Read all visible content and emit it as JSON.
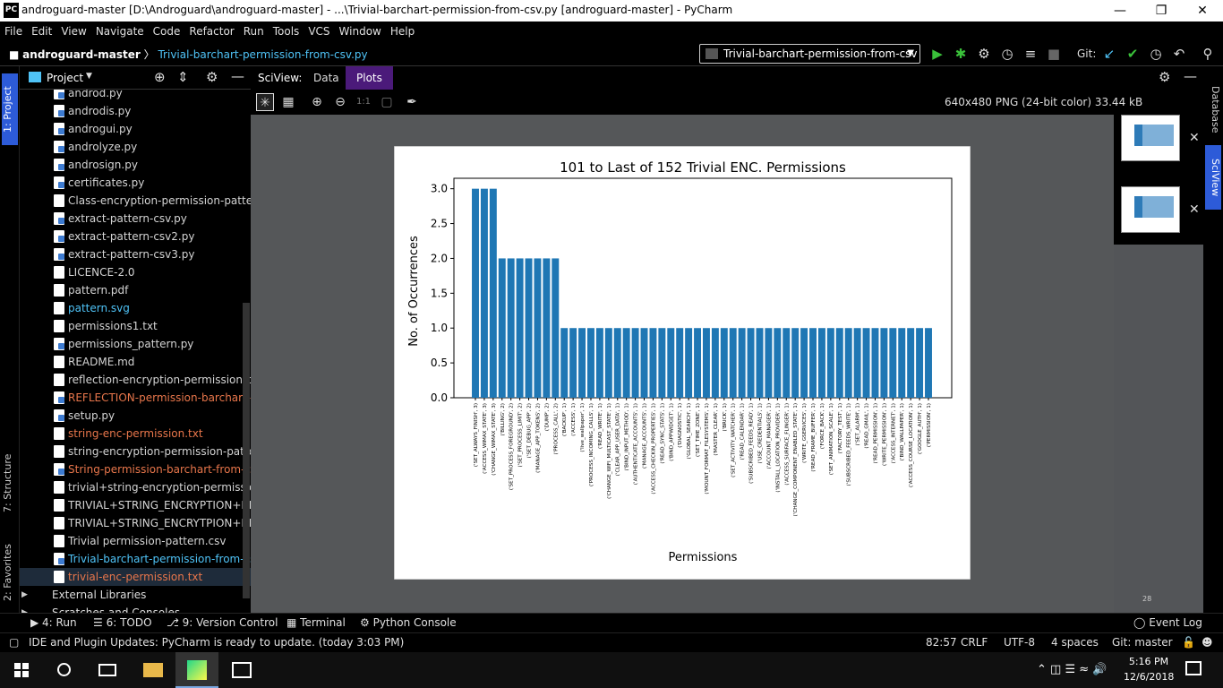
{
  "window": {
    "title": "androguard-master [D:\\Androguard\\androguard-master] - ...\\Trivial-barchart-permission-from-csv.py [androguard-master] - PyCharm",
    "logo": "PC"
  },
  "menu": [
    "File",
    "Edit",
    "View",
    "Navigate",
    "Code",
    "Refactor",
    "Run",
    "Tools",
    "VCS",
    "Window",
    "Help"
  ],
  "nav": {
    "project": "androguard-master",
    "file": "Trivial-barchart-permission-from-csv.py",
    "run_config": "Trivial-barchart-permission-from-csv",
    "git_label": "Git:"
  },
  "left_tabs": {
    "project": "1: Project",
    "structure": "7: Structure",
    "favorites": "2: Favorites"
  },
  "project_panel": {
    "title": "Project",
    "files": [
      {
        "name": "androd.py",
        "type": "py",
        "color": "#d4d4d4"
      },
      {
        "name": "androdis.py",
        "type": "py",
        "color": "#d4d4d4"
      },
      {
        "name": "androgui.py",
        "type": "py",
        "color": "#d4d4d4"
      },
      {
        "name": "androlyze.py",
        "type": "py",
        "color": "#d4d4d4"
      },
      {
        "name": "androsign.py",
        "type": "py",
        "color": "#d4d4d4"
      },
      {
        "name": "certificates.py",
        "type": "py",
        "color": "#d4d4d4"
      },
      {
        "name": "Class-encryption-permission-pattern.c",
        "type": "file",
        "color": "#d4d4d4"
      },
      {
        "name": "extract-pattern-csv.py",
        "type": "py",
        "color": "#d4d4d4"
      },
      {
        "name": "extract-pattern-csv2.py",
        "type": "py",
        "color": "#d4d4d4"
      },
      {
        "name": "extract-pattern-csv3.py",
        "type": "py",
        "color": "#d4d4d4"
      },
      {
        "name": "LICENCE-2.0",
        "type": "file",
        "color": "#d4d4d4"
      },
      {
        "name": "pattern.pdf",
        "type": "file",
        "color": "#d4d4d4"
      },
      {
        "name": "pattern.svg",
        "type": "file",
        "color": "#4fc3f7"
      },
      {
        "name": "permissions1.txt",
        "type": "file",
        "color": "#d4d4d4"
      },
      {
        "name": "permissions_pattern.py",
        "type": "py",
        "color": "#d4d4d4"
      },
      {
        "name": "README.md",
        "type": "file",
        "color": "#d4d4d4"
      },
      {
        "name": "reflection-encryption-permission-patte",
        "type": "file",
        "color": "#d4d4d4"
      },
      {
        "name": "REFLECTION-permission-barchart-fron",
        "type": "py",
        "color": "#e8764b"
      },
      {
        "name": "setup.py",
        "type": "py",
        "color": "#d4d4d4"
      },
      {
        "name": "string-enc-permission.txt",
        "type": "file",
        "color": "#e8764b"
      },
      {
        "name": "string-encryption-permission-pattern.c",
        "type": "file",
        "color": "#d4d4d4"
      },
      {
        "name": "String-permission-barchart-from-csv.p",
        "type": "py",
        "color": "#e8764b"
      },
      {
        "name": "trivial+string-encryption-permission-p",
        "type": "file",
        "color": "#d4d4d4"
      },
      {
        "name": "TRIVIAL+STRING_ENCRYPTION+REFLE",
        "type": "file",
        "color": "#d4d4d4"
      },
      {
        "name": "TRIVIAL+STRING_ENCRYTPION+REFLE",
        "type": "file",
        "color": "#d4d4d4"
      },
      {
        "name": "Trivial permission-pattern.csv",
        "type": "file",
        "color": "#d4d4d4"
      },
      {
        "name": "Trivial-barchart-permission-from-csv.p",
        "type": "py",
        "color": "#4fc3f7"
      },
      {
        "name": "trivial-enc-permission.txt",
        "type": "file",
        "color": "#e8764b"
      }
    ],
    "external": "External Libraries",
    "scratches": "Scratches and Consoles"
  },
  "sciview": {
    "label": "SciView:",
    "tab_data": "Data",
    "tab_plots": "Plots",
    "zoom_label": "1:1",
    "image_info": "640x480 PNG (24-bit color) 33.44 kB",
    "thumb_count": "28"
  },
  "right_tabs": {
    "database": "Database",
    "sciview": "SciView"
  },
  "chart_data": {
    "type": "bar",
    "title": "101 to Last of 152 Trivial ENC. Permissions",
    "xlabel": "Permissions",
    "ylabel": "No. of Occurrences",
    "ylim": [
      0,
      3.15
    ],
    "yticks": [
      "0.0",
      "0.5",
      "1.0",
      "1.5",
      "2.0",
      "2.5",
      "3.0"
    ],
    "bar_color": "#1f77b4",
    "categories": [
      "('SET_ALWAYS_FINISH', 3)",
      "('ACCESS_WIMAX_STATE', 3)",
      "('CHANGE_WIMAX_STATE', 3)",
      "('BILLING', 2)",
      "('SET_PROCESS_FOREGROUND', 2)",
      "('SET_PROCESS_LIMIT', 2)",
      "('SET_DEBUG_APP', 2)",
      "('MANAGE_APP_TOKENS', 2)",
      "('DUMP', 2)",
      "('PROCESS_CALL', 2)",
      "('BACKUP', 1)",
      "('ACCESS', 1)",
      "('live_wallpaper', 1)",
      "('PROCESS_INCOMING_CALLS', 1)",
      "('READ_WRITE', 1)",
      "('CHANGE_WIFI_MULTICAST_STATE', 1)",
      "('CLEAR_APP_USER_DATA', 1)",
      "('BIND_INPUT_METHOD', 1)",
      "('AUTHENTICATE_ACCOUNTS', 1)",
      "('MANAGE_ACCOUNTS', 1)",
      "('ACCESS_CHECKIN_PROPERTIES', 1)",
      "('READ_SYNC_STATS', 1)",
      "('BIND_APPWIDGET', 1)",
      "('DIAGNOSTIC', 1)",
      "('GLOBAL_SEARCH', 1)",
      "('SET_TIME_ZONE', 1)",
      "('MOUNT_FORMAT_FILESYSTEMS', 1)",
      "('MASTER_CLEAR', 1)",
      "('BRICK', 1)",
      "('SET_ACTIVITY_WATCHER', 1)",
      "('READ_CALENDAR', 1)",
      "('SUBSCRIBED_FEEDS_READ', 1)",
      "('USE_CREDENTIALS', 1)",
      "('ACCOUNT_MANAGER', 1)",
      "('INSTALL_LOCATION_PROVIDER', 1)",
      "('ACCESS_SURFACE_FLINGER', 1)",
      "('CHANGE_COMPONENT_ENABLED_STATE', 1)",
      "('WRITE_GSERVICES', 1)",
      "('READ_FRAME_BUFFER', 1)",
      "('FORCE_BACK', 1)",
      "('SET_ANIMATION_SCALE', 1)",
      "('FACTORY_TEST', 1)",
      "('SUBSCRIBED_FEEDS_WRITE', 1)",
      "('SET_ALARM', 1)",
      "('READ_GMAIL', 1)",
      "('READ_PERMISSION', 1)",
      "('WRITE_PERMISSION', 1)",
      "('ACCESS_INTERNET', 1)",
      "('BIND_WALLPAPER', 1)",
      "('ACCESS_COURSE_LOCATION', 1)",
      "('GOOGLE_AUTH', 1)",
      "('PERMISSION', 1)"
    ],
    "values": [
      3,
      3,
      3,
      2,
      2,
      2,
      2,
      2,
      2,
      2,
      1,
      1,
      1,
      1,
      1,
      1,
      1,
      1,
      1,
      1,
      1,
      1,
      1,
      1,
      1,
      1,
      1,
      1,
      1,
      1,
      1,
      1,
      1,
      1,
      1,
      1,
      1,
      1,
      1,
      1,
      1,
      1,
      1,
      1,
      1,
      1,
      1,
      1,
      1,
      1,
      1,
      1
    ]
  },
  "bottom_tools": [
    "4: Run",
    "6: TODO",
    "9: Version Control",
    "Terminal",
    "Python Console"
  ],
  "event_log": "Event Log",
  "status": {
    "message": "IDE and Plugin Updates: PyCharm is ready to update. (today 3:03 PM)",
    "position": "82:57",
    "line_sep": "CRLF",
    "encoding": "UTF-8",
    "indent": "4 spaces",
    "git": "Git: master"
  },
  "taskbar": {
    "time": "5:16 PM",
    "date": "12/6/2018"
  }
}
